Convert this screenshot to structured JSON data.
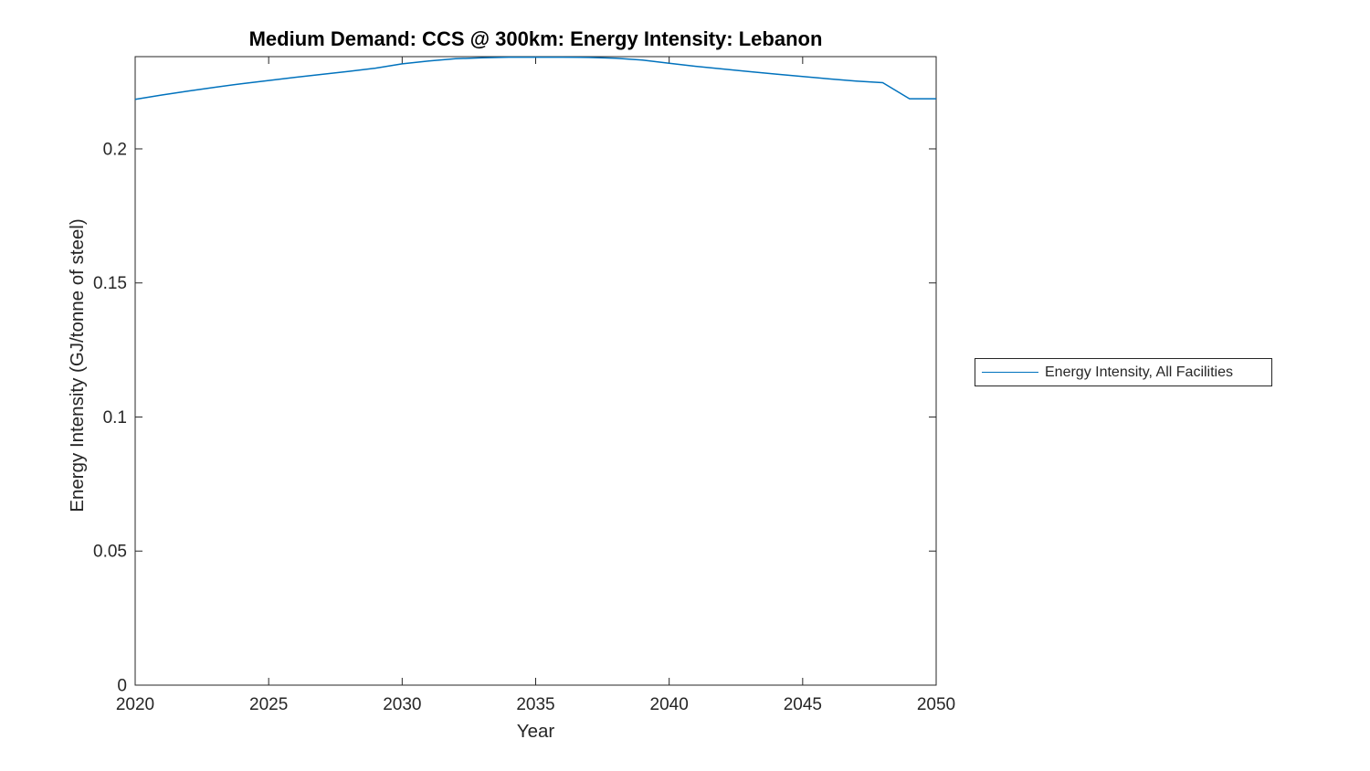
{
  "figure": {
    "background": "#FFFFFF"
  },
  "chart_data": {
    "type": "line",
    "title": "Medium Demand: CCS @ 300km: Energy Intensity: Lebanon",
    "xlabel": "Year",
    "ylabel": "Energy Intensity (GJ/tonne of steel)",
    "x": [
      2020,
      2021,
      2022,
      2023,
      2024,
      2025,
      2026,
      2027,
      2028,
      2029,
      2030,
      2031,
      2032,
      2033,
      2034,
      2035,
      2036,
      2037,
      2038,
      2039,
      2040,
      2041,
      2042,
      2043,
      2044,
      2045,
      2046,
      2047,
      2048,
      2049,
      2050
    ],
    "series": [
      {
        "name": "Energy Intensity, All Facilities",
        "color": "#0072BD",
        "values": [
          0.2185,
          0.2201,
          0.2216,
          0.223,
          0.2243,
          0.2255,
          0.2267,
          0.2278,
          0.2289,
          0.2301,
          0.2317,
          0.2328,
          0.2336,
          0.234,
          0.2342,
          0.2342,
          0.2342,
          0.2341,
          0.2338,
          0.2331,
          0.2319,
          0.2308,
          0.2298,
          0.2288,
          0.2279,
          0.227,
          0.2261,
          0.2253,
          0.2247,
          0.2187,
          0.2187
        ]
      }
    ],
    "xlim": [
      2020,
      2050
    ],
    "ylim": [
      0,
      0.2344
    ],
    "xticks": {
      "values": [
        2020,
        2025,
        2030,
        2035,
        2040,
        2045,
        2050
      ],
      "labels": [
        "2020",
        "2025",
        "2030",
        "2035",
        "2040",
        "2045",
        "2050"
      ]
    },
    "yticks": {
      "values": [
        0,
        0.05,
        0.1,
        0.15,
        0.2
      ],
      "labels": [
        "0",
        "0.05",
        "0.1",
        "0.15",
        "0.2"
      ]
    },
    "grid": false,
    "legend": {
      "position": "right-outside",
      "entries": [
        "Energy Intensity, All Facilities"
      ]
    },
    "colors": {
      "line": "#0072BD",
      "axis": "#262626",
      "title": "#000000"
    }
  }
}
